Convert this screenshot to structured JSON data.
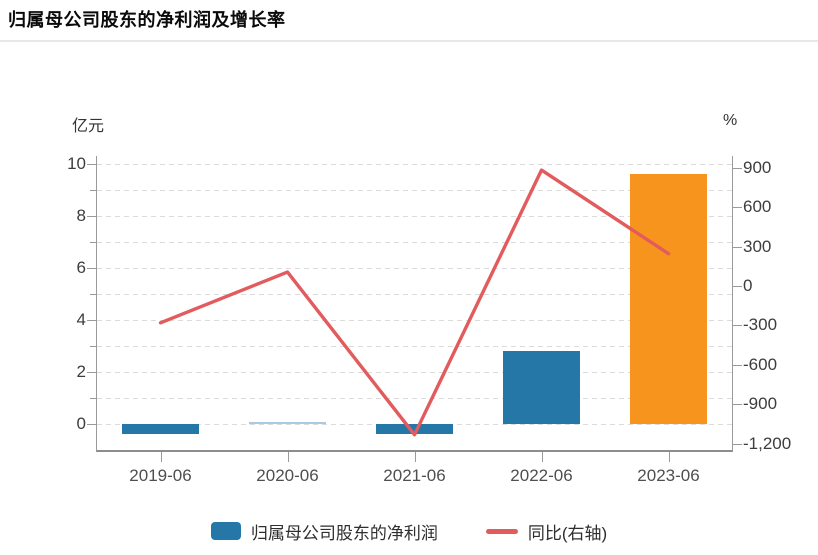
{
  "page": {
    "title": "归属母公司股东的净利润及增长率"
  },
  "chart_data": {
    "type": "combo-bar-line",
    "title": "归属母公司股东的净利润及增长率",
    "categories": [
      "2019-06",
      "2020-06",
      "2021-06",
      "2022-06",
      "2023-06"
    ],
    "series": [
      {
        "name": "归属母公司股东的净利润",
        "type": "bar",
        "axis": "left",
        "unit": "亿元",
        "values": [
          -0.4,
          0.05,
          -0.4,
          2.8,
          9.6
        ],
        "bar_colors": [
          "#2577A7",
          "#A9CBE2",
          "#2577A7",
          "#2577A7",
          "#F7941E"
        ]
      },
      {
        "name": "同比(右轴)",
        "type": "line",
        "axis": "right",
        "unit": "%",
        "values": [
          -280,
          105,
          -1130,
          880,
          245
        ],
        "color": "#E25B5D"
      }
    ],
    "left_axis": {
      "name": "亿元",
      "min": -1.0,
      "max": 10.3,
      "ticks": [
        {
          "value": 10,
          "label": "10"
        },
        {
          "value": 8,
          "label": "8"
        },
        {
          "value": 6,
          "label": "6"
        },
        {
          "value": 4,
          "label": "4"
        },
        {
          "value": 2,
          "label": "2"
        },
        {
          "value": 0,
          "label": "0"
        }
      ],
      "minor_ticks": [
        9,
        7,
        5,
        3,
        1
      ]
    },
    "right_axis": {
      "name": "%",
      "min": -1246,
      "max": 987,
      "ticks": [
        {
          "value": 900,
          "label": "900"
        },
        {
          "value": 600,
          "label": "600"
        },
        {
          "value": 300,
          "label": "300"
        },
        {
          "value": 0,
          "label": "0"
        },
        {
          "value": -300,
          "label": "-300"
        },
        {
          "value": -600,
          "label": "-600"
        },
        {
          "value": -900,
          "label": "-900"
        },
        {
          "value": -1200,
          "label": "-1,200"
        }
      ]
    },
    "legend": [
      {
        "label": "归属母公司股东的净利润",
        "swatch": "bar",
        "color": "#2577A7"
      },
      {
        "label": "同比(右轴)",
        "swatch": "line",
        "color": "#E25B5D"
      }
    ],
    "grid": {
      "horizontal": true,
      "style": "dashed",
      "color": "#dbdbdb"
    }
  }
}
